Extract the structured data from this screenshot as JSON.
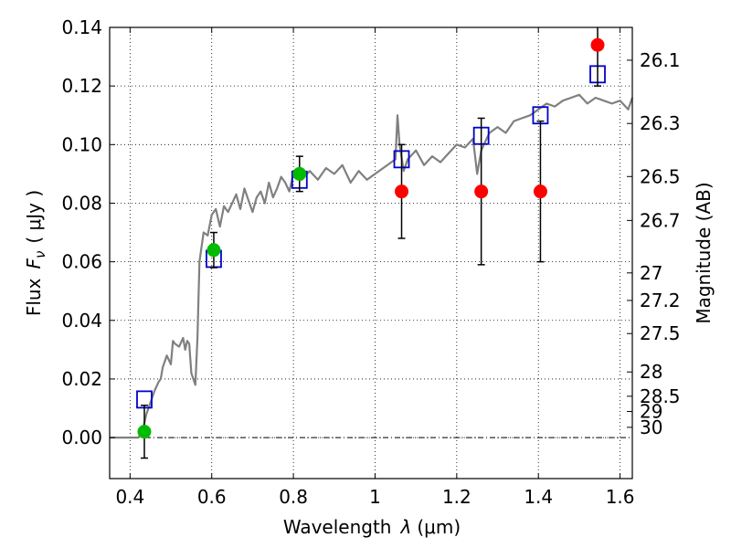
{
  "chart_data": {
    "type": "scatter",
    "xlabel": "Wavelength",
    "xlabel_symbol": "λ",
    "xlabel_unit": "(μm)",
    "ylabel": "Flux",
    "ylabel_symbol": "F",
    "ylabel_subscript": "ν",
    "ylabel_unit": "( μJy )",
    "y2label": "Magnitude (AB)",
    "xlim": [
      0.35,
      1.63
    ],
    "ylim": [
      -0.014,
      0.14
    ],
    "grid": true,
    "x_ticks": [
      0.4,
      0.6,
      0.8,
      1.0,
      1.2,
      1.4,
      1.6
    ],
    "x_tick_labels": [
      "0.4",
      "0.6",
      "0.8",
      "1",
      "1.2",
      "1.4",
      "1.6"
    ],
    "y_ticks": [
      0.0,
      0.02,
      0.04,
      0.06,
      0.08,
      0.1,
      0.12,
      0.14
    ],
    "y_tick_labels": [
      "0.00",
      "0.02",
      "0.04",
      "0.06",
      "0.08",
      "0.10",
      "0.12",
      "0.14"
    ],
    "mag_ticks": [
      {
        "label": "26.1",
        "flux": 0.1288
      },
      {
        "label": "26.3",
        "flux": 0.1072
      },
      {
        "label": "26.5",
        "flux": 0.0891
      },
      {
        "label": "26.7",
        "flux": 0.0741
      },
      {
        "label": "27",
        "flux": 0.0562
      },
      {
        "label": "27.2",
        "flux": 0.0468
      },
      {
        "label": "27.5",
        "flux": 0.0355
      },
      {
        "label": "28",
        "flux": 0.0224
      },
      {
        "label": "28.5",
        "flux": 0.0141
      },
      {
        "label": "29",
        "flux": 0.0089
      },
      {
        "label": "30",
        "flux": 0.0035
      }
    ],
    "series": [
      {
        "kind": "line",
        "color": "#808080",
        "x": [
          0.35,
          0.4,
          0.42,
          0.43,
          0.44,
          0.45,
          0.46,
          0.47,
          0.475,
          0.48,
          0.49,
          0.5,
          0.505,
          0.51,
          0.52,
          0.53,
          0.535,
          0.54,
          0.545,
          0.55,
          0.555,
          0.56,
          0.565,
          0.57,
          0.58,
          0.59,
          0.6,
          0.61,
          0.62,
          0.63,
          0.64,
          0.65,
          0.66,
          0.67,
          0.68,
          0.69,
          0.7,
          0.71,
          0.72,
          0.73,
          0.74,
          0.75,
          0.76,
          0.77,
          0.78,
          0.79,
          0.8,
          0.82,
          0.84,
          0.86,
          0.88,
          0.9,
          0.92,
          0.94,
          0.96,
          0.98,
          1.0,
          1.02,
          1.04,
          1.05,
          1.055,
          1.06,
          1.07,
          1.08,
          1.1,
          1.12,
          1.14,
          1.16,
          1.18,
          1.2,
          1.22,
          1.24,
          1.25,
          1.26,
          1.27,
          1.28,
          1.3,
          1.32,
          1.34,
          1.36,
          1.38,
          1.4,
          1.42,
          1.44,
          1.46,
          1.48,
          1.5,
          1.52,
          1.54,
          1.56,
          1.58,
          1.6,
          1.62,
          1.63
        ],
        "y": [
          0.0,
          0.0,
          0.0,
          0.002,
          0.008,
          0.012,
          0.016,
          0.019,
          0.02,
          0.024,
          0.028,
          0.025,
          0.033,
          0.032,
          0.031,
          0.034,
          0.03,
          0.033,
          0.032,
          0.022,
          0.02,
          0.018,
          0.034,
          0.06,
          0.07,
          0.069,
          0.076,
          0.078,
          0.072,
          0.079,
          0.077,
          0.08,
          0.083,
          0.078,
          0.085,
          0.081,
          0.077,
          0.082,
          0.084,
          0.08,
          0.087,
          0.082,
          0.085,
          0.089,
          0.087,
          0.084,
          0.09,
          0.088,
          0.091,
          0.088,
          0.092,
          0.09,
          0.093,
          0.087,
          0.091,
          0.088,
          0.09,
          0.092,
          0.094,
          0.095,
          0.11,
          0.1,
          0.091,
          0.095,
          0.098,
          0.093,
          0.096,
          0.094,
          0.097,
          0.1,
          0.099,
          0.102,
          0.09,
          0.098,
          0.101,
          0.104,
          0.106,
          0.104,
          0.108,
          0.109,
          0.11,
          0.112,
          0.114,
          0.113,
          0.115,
          0.116,
          0.117,
          0.114,
          0.116,
          0.115,
          0.114,
          0.115,
          0.112,
          0.116
        ]
      },
      {
        "kind": "points",
        "marker": "square",
        "color": "#0000cc",
        "x": [
          0.435,
          0.605,
          0.815,
          1.065,
          1.26,
          1.405,
          1.545
        ],
        "y": [
          0.013,
          0.061,
          0.088,
          0.095,
          0.103,
          0.11,
          0.124
        ]
      },
      {
        "kind": "points",
        "marker": "circle",
        "color": "#00bb00",
        "x": [
          0.435,
          0.605,
          0.815
        ],
        "y": [
          0.002,
          0.064,
          0.09
        ],
        "err": [
          0.009,
          0.006,
          0.006
        ]
      },
      {
        "kind": "points",
        "marker": "circle",
        "color": "#ff0000",
        "x": [
          1.065,
          1.26,
          1.405,
          1.545
        ],
        "y": [
          0.084,
          0.084,
          0.084,
          0.134
        ],
        "err": [
          0.016,
          0.025,
          0.024,
          0.014
        ]
      }
    ]
  }
}
